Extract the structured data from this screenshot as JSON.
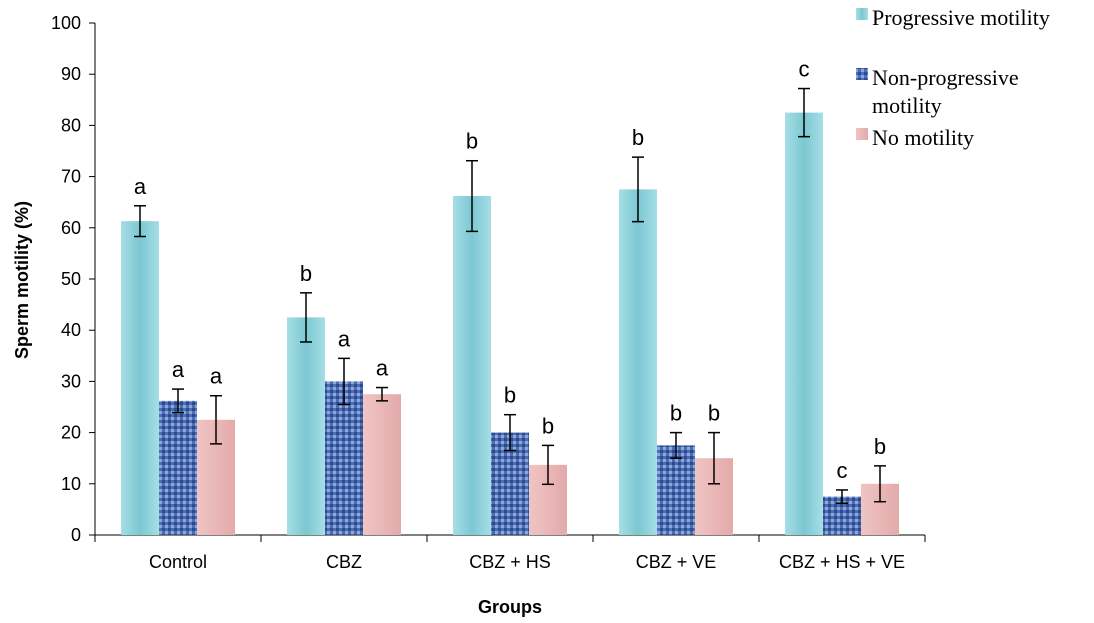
{
  "chart_data": {
    "type": "bar",
    "title": "",
    "xlabel": "Groups",
    "ylabel": "Sperm motility (%)",
    "ylim": [
      0,
      100
    ],
    "yticks": [
      0,
      10,
      20,
      30,
      40,
      50,
      60,
      70,
      80,
      90,
      100
    ],
    "categories": [
      "Control",
      "CBZ",
      "CBZ + HS",
      "CBZ + VE",
      "CBZ + HS + VE"
    ],
    "series": [
      {
        "name": "Progressive motility",
        "color": "#8fd3dc",
        "values": [
          61.3,
          42.5,
          66.2,
          67.5,
          82.5
        ],
        "errors": [
          3.0,
          4.8,
          6.9,
          6.3,
          4.7
        ],
        "letters": [
          "a",
          "b",
          "b",
          "b",
          "c"
        ]
      },
      {
        "name": "Non-progressive motility",
        "color": "#3f5fa8",
        "values": [
          26.2,
          30.0,
          20.0,
          17.5,
          7.5
        ],
        "errors": [
          2.3,
          4.5,
          3.5,
          2.5,
          1.3
        ],
        "letters": [
          "a",
          "a",
          "b",
          "b",
          "c"
        ]
      },
      {
        "name": "No motility",
        "color": "#e8b6b6",
        "values": [
          22.5,
          27.5,
          13.7,
          15.0,
          10.0
        ],
        "errors": [
          4.7,
          1.3,
          3.8,
          5.0,
          3.5
        ],
        "letters": [
          "a",
          "a",
          "b",
          "b",
          "b"
        ]
      }
    ],
    "legend": {
      "position": "top-right",
      "lines": [
        [
          "Progressive motility"
        ],
        [
          "Non-progressive",
          "motility"
        ],
        [
          "No motility"
        ]
      ]
    },
    "grid": false
  }
}
